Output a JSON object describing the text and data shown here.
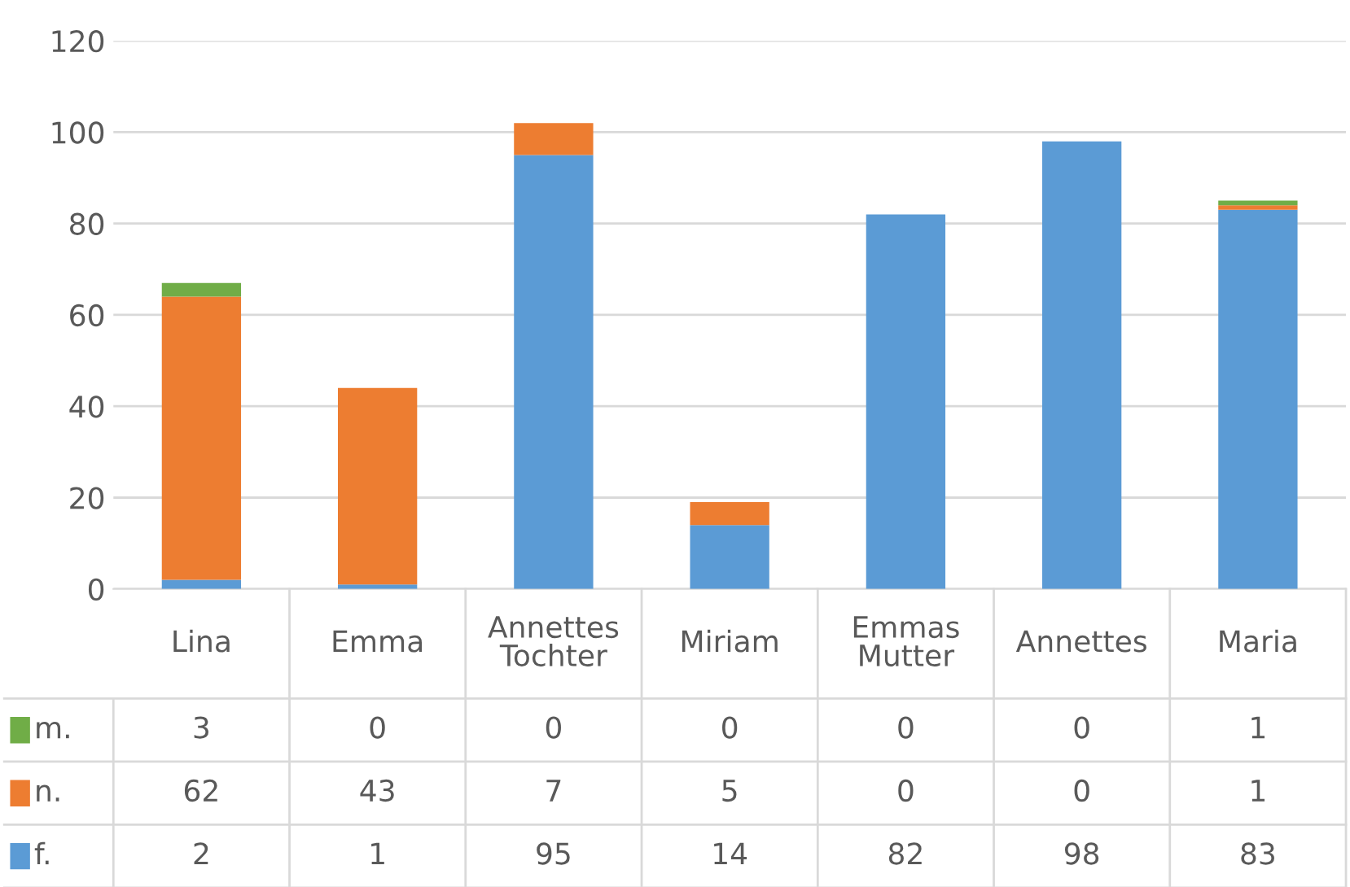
{
  "chart_data": {
    "type": "bar",
    "stacked": true,
    "categories": [
      "Lina",
      "Emma",
      "Annettes\nTochter",
      "Miriam",
      "Emmas\nMutter",
      "Annettes",
      "Maria"
    ],
    "series": [
      {
        "name": "f.",
        "color": "#5b9bd5",
        "values": [
          2,
          1,
          95,
          14,
          82,
          98,
          83
        ]
      },
      {
        "name": "n.",
        "color": "#ed7d31",
        "values": [
          62,
          43,
          7,
          5,
          0,
          0,
          1
        ]
      },
      {
        "name": "m.",
        "color": "#70ad47",
        "values": [
          3,
          0,
          0,
          0,
          0,
          0,
          1
        ]
      }
    ],
    "ylim": [
      0,
      120
    ],
    "yticks": [
      0,
      20,
      40,
      60,
      80,
      100,
      120
    ],
    "grid": "y",
    "legend": "bottom",
    "data_labels": true
  }
}
